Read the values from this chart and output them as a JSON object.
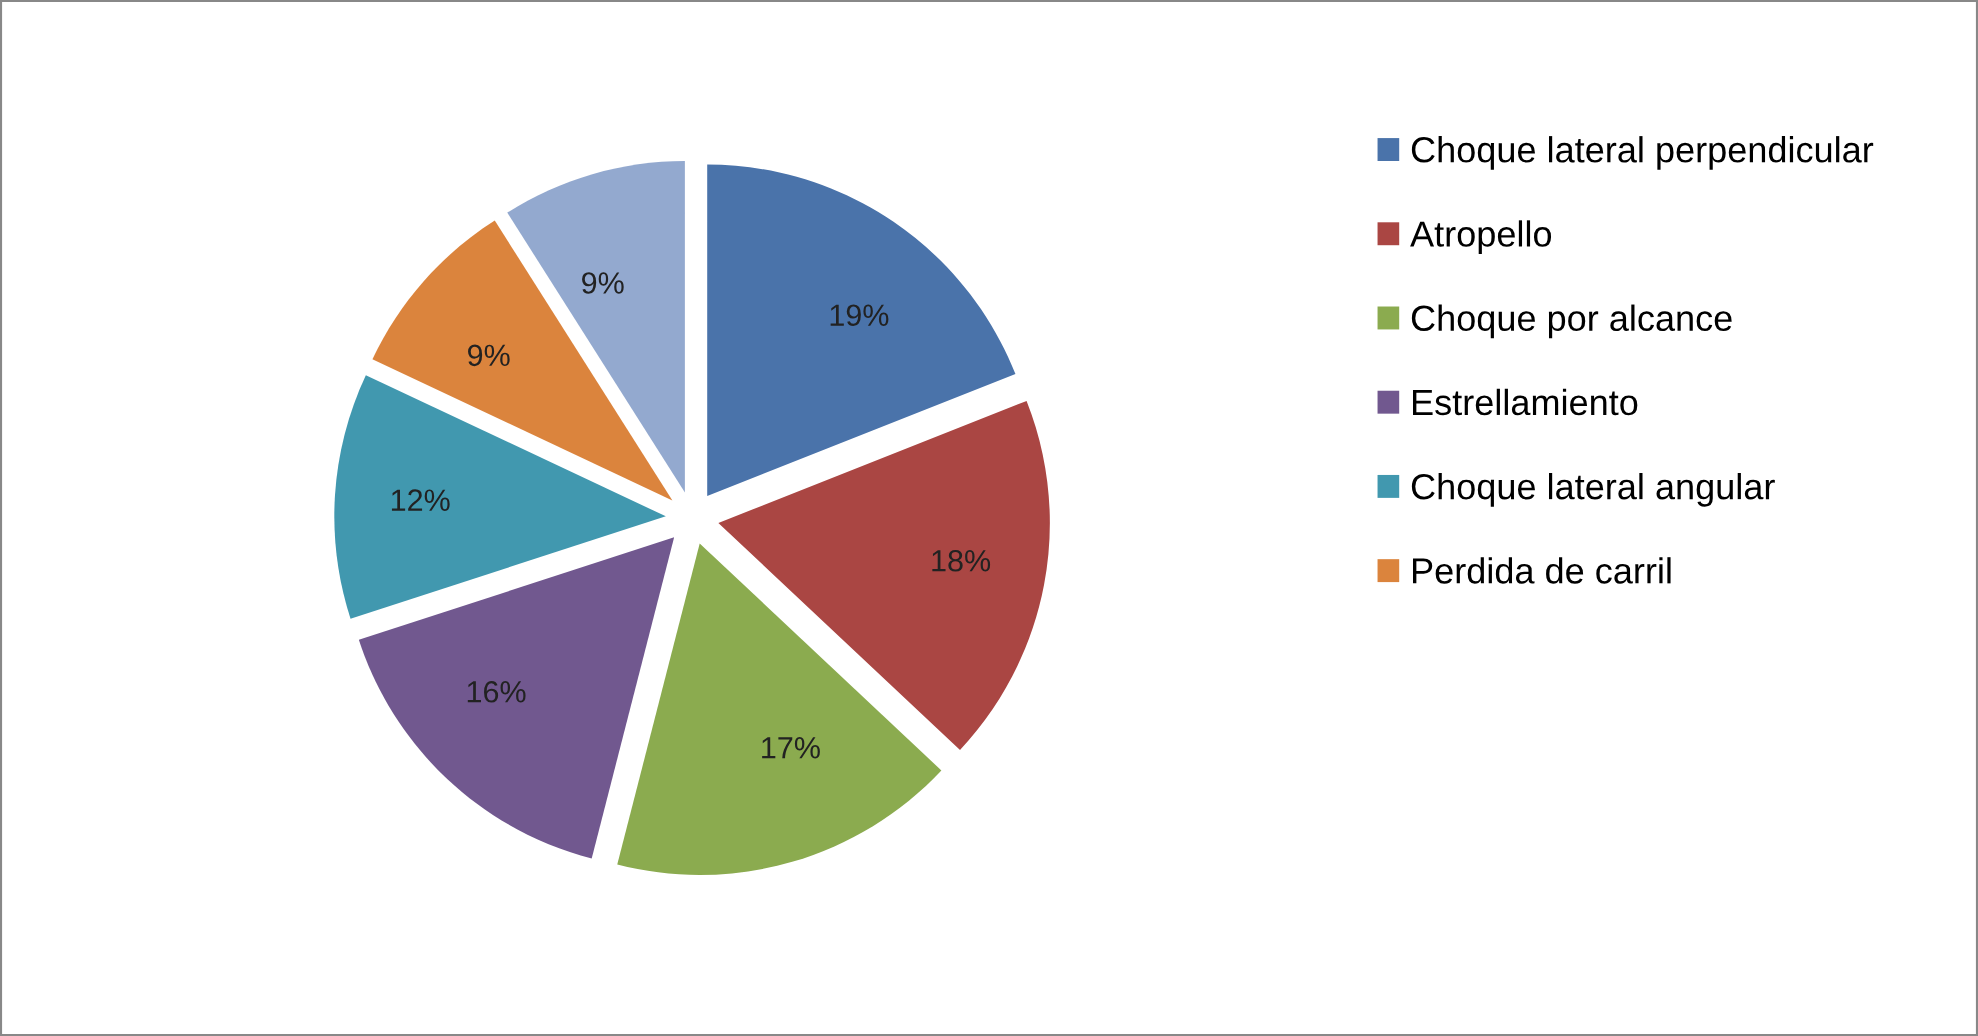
{
  "chart_data": {
    "type": "pie",
    "categories": [
      "Choque lateral perpendicular",
      "Atropello",
      "Choque por alcance",
      "Estrellamiento",
      "Choque lateral angular",
      "Perdida de carril",
      null
    ],
    "values": [
      19,
      18,
      17,
      16,
      12,
      9,
      9
    ],
    "colors": [
      "#4a73aa",
      "#aa4643",
      "#8bab4f",
      "#71588f",
      "#4198af",
      "#db843d",
      "#93a9cf"
    ],
    "value_labels": [
      "19%",
      "18%",
      "17%",
      "16%",
      "12%",
      "9%",
      "9%"
    ],
    "legend": "right"
  }
}
